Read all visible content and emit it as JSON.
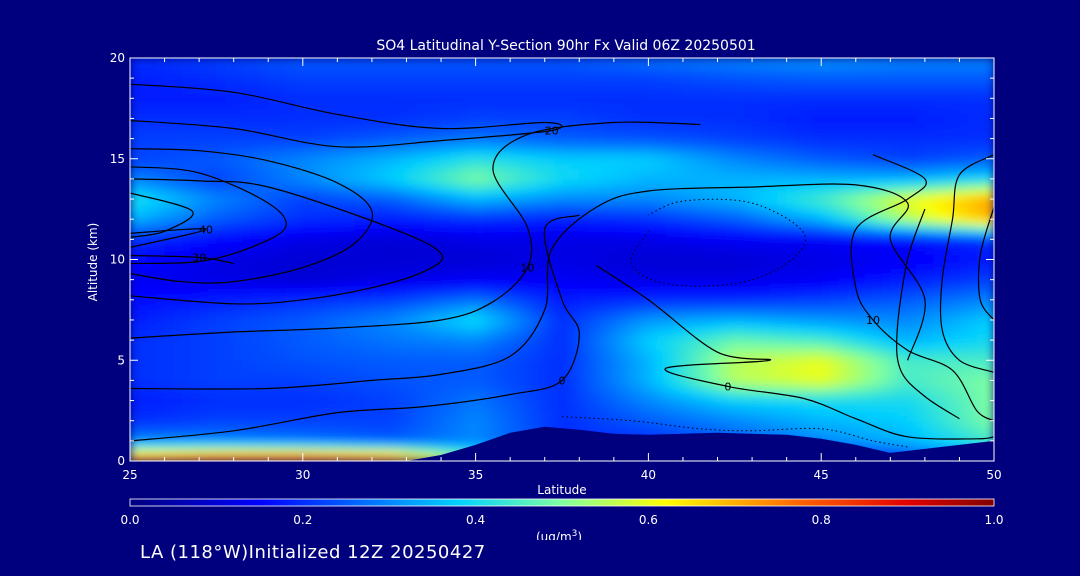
{
  "chart_data": {
    "type": "heatmap",
    "title": "SO4 Latitudinal Y-Section 90hr  Fx Valid 06Z 20250501",
    "xlabel": "Latitude",
    "ylabel": "Altitude (km)",
    "xlim": [
      25,
      50
    ],
    "ylim": [
      0,
      20
    ],
    "x_ticks": [
      "25",
      "30",
      "35",
      "40",
      "45",
      "50"
    ],
    "y_ticks": [
      "0",
      "5",
      "10",
      "15",
      "20"
    ],
    "colorbar": {
      "unit_label": "(ug/m",
      "unit_superscript": "3",
      "unit_suffix": ")",
      "ticks": [
        "0.0",
        "0.2",
        "0.4",
        "0.6",
        "0.8",
        "1.0"
      ],
      "range": [
        0,
        1
      ]
    },
    "field": {
      "lat": [
        25,
        27.5,
        30,
        32.5,
        35,
        37.5,
        40,
        42.5,
        45,
        47.5,
        50
      ],
      "alt": [
        0,
        1,
        2,
        3,
        4,
        5,
        6,
        7,
        8,
        9,
        10,
        11,
        12,
        13,
        14,
        15,
        16,
        17,
        18,
        19,
        20
      ],
      "values": [
        [
          0.82,
          0.88,
          0.9,
          0.85,
          0.5,
          0.12,
          0.1,
          0.1,
          0.12,
          0.2,
          0.25
        ],
        [
          0.3,
          0.3,
          0.28,
          0.25,
          0.3,
          0.2,
          0.2,
          0.25,
          0.3,
          0.35,
          0.45
        ],
        [
          0.2,
          0.22,
          0.22,
          0.22,
          0.3,
          0.2,
          0.25,
          0.3,
          0.35,
          0.38,
          0.5
        ],
        [
          0.18,
          0.2,
          0.2,
          0.22,
          0.28,
          0.2,
          0.3,
          0.38,
          0.4,
          0.4,
          0.5
        ],
        [
          0.2,
          0.22,
          0.22,
          0.24,
          0.25,
          0.2,
          0.35,
          0.55,
          0.6,
          0.45,
          0.5
        ],
        [
          0.2,
          0.22,
          0.24,
          0.25,
          0.25,
          0.2,
          0.35,
          0.55,
          0.6,
          0.45,
          0.45
        ],
        [
          0.2,
          0.22,
          0.25,
          0.28,
          0.3,
          0.2,
          0.38,
          0.48,
          0.45,
          0.35,
          0.4
        ],
        [
          0.18,
          0.22,
          0.25,
          0.3,
          0.4,
          0.2,
          0.32,
          0.35,
          0.32,
          0.3,
          0.38
        ],
        [
          0.16,
          0.18,
          0.2,
          0.22,
          0.28,
          0.18,
          0.2,
          0.2,
          0.22,
          0.25,
          0.3
        ],
        [
          0.14,
          0.12,
          0.1,
          0.12,
          0.14,
          0.14,
          0.12,
          0.12,
          0.14,
          0.18,
          0.22
        ],
        [
          0.16,
          0.12,
          0.1,
          0.1,
          0.1,
          0.12,
          0.1,
          0.1,
          0.12,
          0.14,
          0.18
        ],
        [
          0.2,
          0.16,
          0.12,
          0.1,
          0.12,
          0.12,
          0.12,
          0.14,
          0.14,
          0.16,
          0.2
        ],
        [
          0.35,
          0.25,
          0.2,
          0.18,
          0.2,
          0.18,
          0.2,
          0.25,
          0.35,
          0.55,
          0.7
        ],
        [
          0.42,
          0.3,
          0.22,
          0.25,
          0.35,
          0.3,
          0.3,
          0.35,
          0.45,
          0.6,
          0.72
        ],
        [
          0.3,
          0.22,
          0.3,
          0.38,
          0.5,
          0.4,
          0.35,
          0.35,
          0.35,
          0.35,
          0.4
        ],
        [
          0.22,
          0.25,
          0.3,
          0.35,
          0.42,
          0.38,
          0.38,
          0.3,
          0.25,
          0.22,
          0.25
        ],
        [
          0.22,
          0.22,
          0.22,
          0.25,
          0.28,
          0.25,
          0.24,
          0.22,
          0.2,
          0.2,
          0.2
        ],
        [
          0.2,
          0.2,
          0.2,
          0.2,
          0.22,
          0.22,
          0.2,
          0.2,
          0.18,
          0.18,
          0.2
        ],
        [
          0.18,
          0.18,
          0.2,
          0.2,
          0.2,
          0.2,
          0.2,
          0.2,
          0.2,
          0.2,
          0.2
        ],
        [
          0.18,
          0.2,
          0.22,
          0.22,
          0.22,
          0.22,
          0.22,
          0.24,
          0.25,
          0.25,
          0.25
        ],
        [
          0.2,
          0.22,
          0.25,
          0.25,
          0.25,
          0.25,
          0.28,
          0.3,
          0.32,
          0.3,
          0.3
        ]
      ]
    },
    "terrain": {
      "lat": [
        25,
        33,
        34,
        35,
        36,
        37,
        38,
        39,
        40,
        42,
        44,
        45,
        46,
        47,
        48,
        49,
        50
      ],
      "alt": [
        0,
        0,
        0.3,
        0.8,
        1.4,
        1.7,
        1.55,
        1.35,
        1.3,
        1.4,
        1.3,
        1.1,
        0.8,
        0.4,
        0.6,
        0.8,
        1.0
      ]
    },
    "contours": [
      {
        "label": "20",
        "points": [
          [
            25,
            18.7
          ],
          [
            28,
            18.3
          ],
          [
            31,
            17.2
          ],
          [
            34,
            16.5
          ],
          [
            37,
            16.8
          ],
          [
            37.2,
            16.4
          ],
          [
            34,
            15.9
          ],
          [
            31,
            15.6
          ],
          [
            28,
            16.5
          ],
          [
            25,
            16.9
          ]
        ]
      },
      {
        "label": "",
        "points": [
          [
            25,
            15.5
          ],
          [
            27,
            15.4
          ],
          [
            29,
            14.9
          ],
          [
            31,
            13.8
          ],
          [
            32,
            12.4
          ],
          [
            31.5,
            10.8
          ],
          [
            30,
            9.6
          ],
          [
            28,
            8.9
          ],
          [
            26.5,
            8.9
          ],
          [
            25,
            9.3
          ]
        ]
      },
      {
        "label": "",
        "points": [
          [
            25,
            14.6
          ],
          [
            27,
            14.3
          ],
          [
            29,
            12.8
          ],
          [
            29.5,
            11.6
          ],
          [
            28.5,
            10.6
          ],
          [
            27,
            9.9
          ],
          [
            25,
            9.8
          ]
        ]
      },
      {
        "label": "",
        "points": [
          [
            25,
            13.3
          ],
          [
            26.8,
            12.4
          ],
          [
            26,
            11.4
          ],
          [
            25,
            11.1
          ]
        ]
      },
      {
        "label": "40",
        "points": [
          [
            25,
            11.3
          ],
          [
            27.2,
            11.5
          ],
          [
            25,
            10.6
          ]
        ]
      },
      {
        "label": "30",
        "points": [
          [
            25,
            10.2
          ],
          [
            27,
            10.1
          ],
          [
            28,
            9.8
          ]
        ]
      },
      {
        "label": "",
        "points": [
          [
            25,
            14.0
          ],
          [
            27,
            13.9
          ],
          [
            29,
            13.6
          ],
          [
            32.5,
            11.6
          ],
          [
            34,
            10.3
          ],
          [
            33.5,
            9.4
          ],
          [
            32,
            8.6
          ],
          [
            30,
            8.0
          ],
          [
            28,
            7.8
          ],
          [
            25,
            8.2
          ]
        ]
      },
      {
        "label": "10",
        "points": [
          [
            25,
            6.1
          ],
          [
            28,
            6.4
          ],
          [
            31,
            6.6
          ],
          [
            34,
            7.0
          ],
          [
            35.5,
            7.9
          ],
          [
            36.5,
            9.6
          ],
          [
            36.5,
            11.6
          ],
          [
            35.5,
            14.5
          ],
          [
            36.5,
            16.2
          ],
          [
            39,
            16.8
          ],
          [
            41.5,
            16.7
          ]
        ]
      },
      {
        "label": "",
        "points": [
          [
            25,
            3.6
          ],
          [
            29,
            3.6
          ],
          [
            32,
            4.0
          ],
          [
            34,
            4.3
          ],
          [
            36,
            5.2
          ],
          [
            37,
            7.5
          ],
          [
            37.2,
            10.5
          ],
          [
            38.5,
            12.6
          ],
          [
            40,
            13.4
          ],
          [
            43,
            13.6
          ],
          [
            46,
            13.7
          ],
          [
            47.5,
            12.8
          ],
          [
            47,
            11.0
          ],
          [
            48,
            8.0
          ],
          [
            47.5,
            5.0
          ]
        ]
      },
      {
        "label": "0",
        "points": [
          [
            25,
            1.0
          ],
          [
            28,
            1.5
          ],
          [
            31,
            2.4
          ],
          [
            33.5,
            2.7
          ],
          [
            36,
            3.3
          ],
          [
            37.5,
            4.0
          ],
          [
            38,
            6.3
          ],
          [
            37.5,
            8.0
          ],
          [
            37,
            11.5
          ],
          [
            38,
            12.2
          ]
        ]
      },
      {
        "label": "0",
        "points": [
          [
            38.5,
            9.7
          ],
          [
            40,
            8.0
          ],
          [
            42,
            5.4
          ],
          [
            43.5,
            5.0
          ],
          [
            40.5,
            4.6
          ],
          [
            42.3,
            3.7
          ],
          [
            44.5,
            3.1
          ],
          [
            46,
            2.1
          ],
          [
            47.5,
            1.2
          ],
          [
            49.5,
            1.1
          ],
          [
            50,
            1.2
          ]
        ]
      },
      {
        "label": "10",
        "points": [
          [
            46.5,
            15.2
          ],
          [
            48,
            14.0
          ],
          [
            47.5,
            13.0
          ],
          [
            46,
            11.5
          ],
          [
            46,
            8.6
          ],
          [
            46.5,
            7.0
          ],
          [
            47.5,
            5.5
          ],
          [
            48.8,
            4.5
          ],
          [
            49.5,
            2.5
          ],
          [
            50,
            2.0
          ]
        ]
      },
      {
        "label": "",
        "points": [
          [
            50,
            15.2
          ],
          [
            49,
            14.2
          ],
          [
            48.8,
            12.0
          ],
          [
            48.5,
            9.0
          ],
          [
            48.5,
            6.5
          ],
          [
            49.0,
            5.0
          ],
          [
            50,
            4.4
          ]
        ]
      },
      {
        "label": "",
        "points": [
          [
            48,
            12.5
          ],
          [
            47.5,
            10.0
          ],
          [
            47.2,
            6.5
          ],
          [
            47.3,
            4.5
          ],
          [
            48,
            3.2
          ],
          [
            49,
            2.1
          ]
        ]
      },
      {
        "label": "",
        "points": [
          [
            50,
            12.6
          ],
          [
            49.6,
            10.2
          ],
          [
            49.6,
            8.0
          ],
          [
            50,
            7.0
          ]
        ]
      }
    ],
    "dotted_contours": [
      {
        "label": "",
        "points": [
          [
            40,
            11.4
          ],
          [
            39.5,
            9.8
          ],
          [
            40.5,
            8.8
          ],
          [
            42.5,
            8.8
          ],
          [
            44,
            9.8
          ],
          [
            44.5,
            11.3
          ],
          [
            43,
            12.8
          ],
          [
            41,
            12.9
          ],
          [
            40,
            12.2
          ]
        ]
      },
      {
        "label": "",
        "points": [
          [
            37.5,
            2.2
          ],
          [
            39.5,
            2.0
          ],
          [
            41.5,
            1.6
          ],
          [
            43,
            1.5
          ],
          [
            45,
            1.6
          ],
          [
            46.5,
            1.0
          ],
          [
            47.5,
            0.7
          ]
        ]
      }
    ]
  }
}
